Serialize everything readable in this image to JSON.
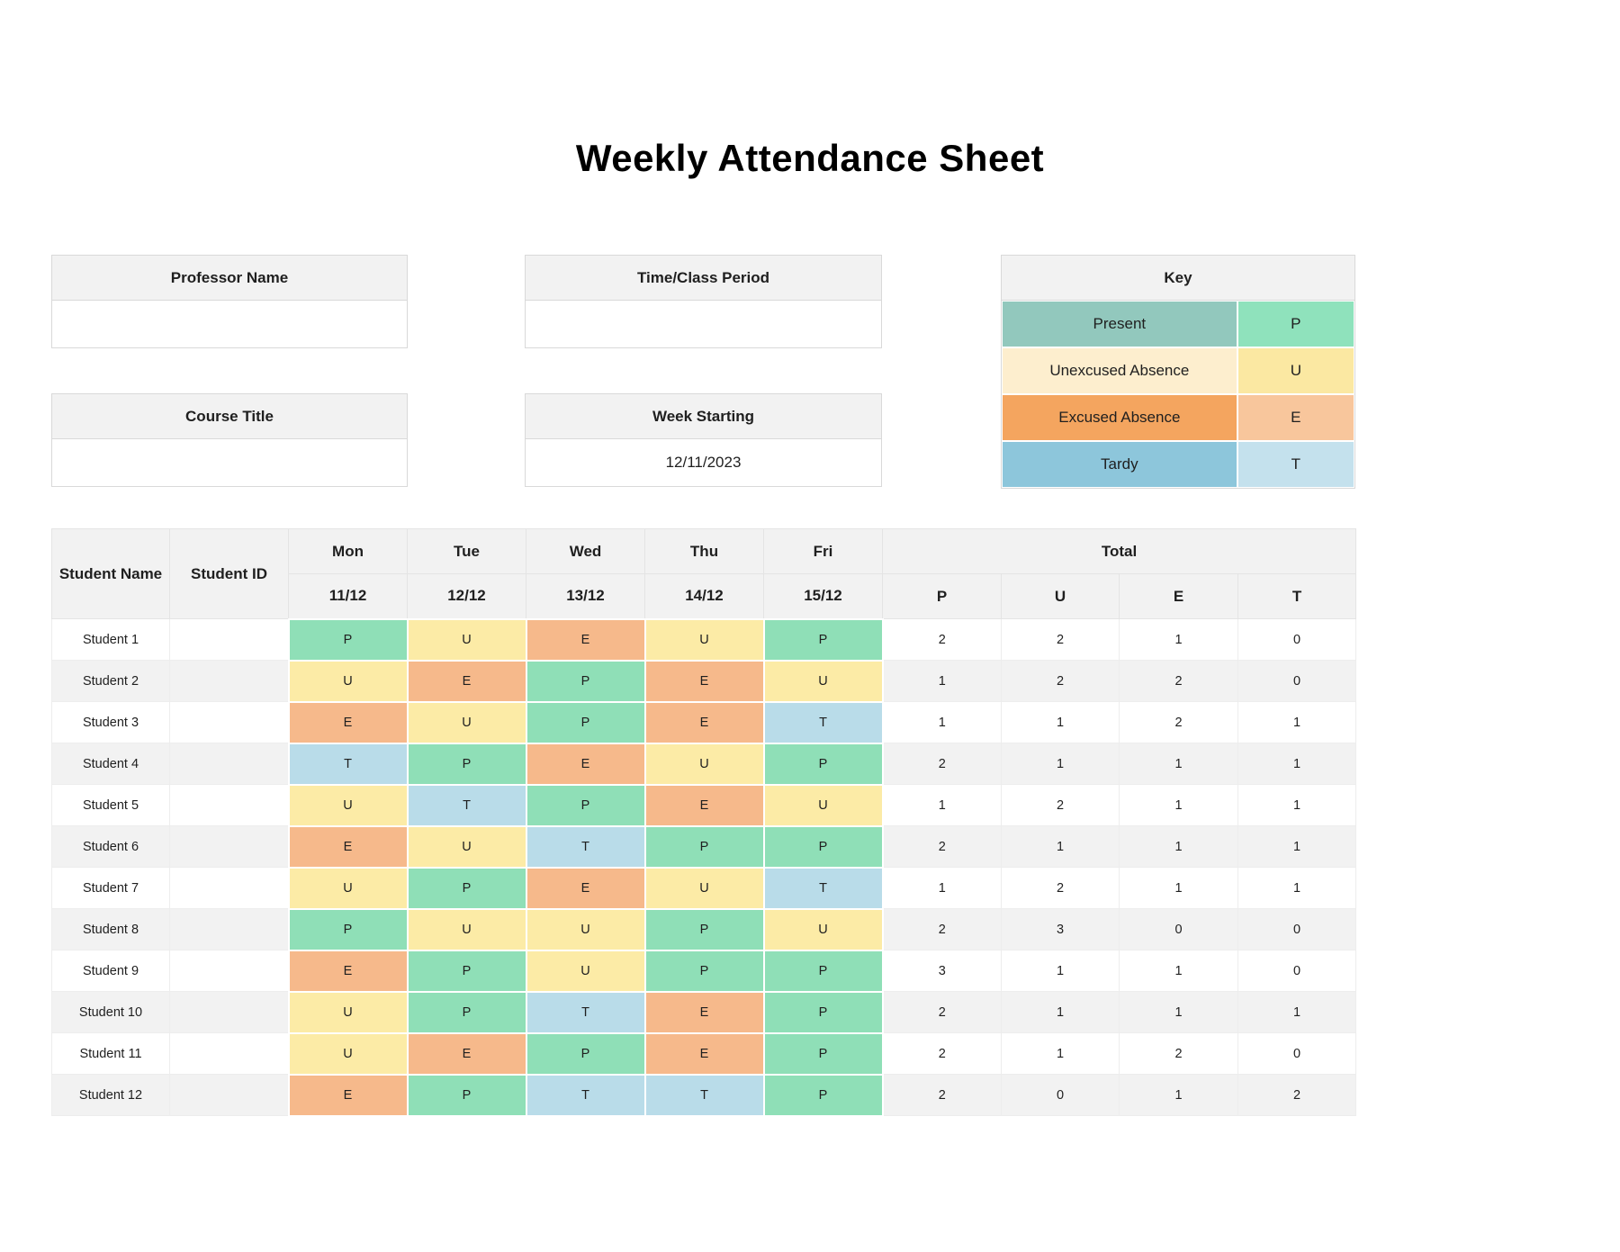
{
  "title": "Weekly Attendance Sheet",
  "form": {
    "professor": {
      "label": "Professor Name",
      "value": ""
    },
    "time_class": {
      "label": "Time/Class Period",
      "value": ""
    },
    "course": {
      "label": "Course Title",
      "value": ""
    },
    "week_starting": {
      "label": "Week Starting",
      "value": "12/11/2023"
    }
  },
  "key": {
    "title": "Key",
    "entries": [
      {
        "label": "Present",
        "code": "P",
        "label_color": "#92C8BD",
        "code_color": "#8FE2BC"
      },
      {
        "label": "Unexcused Absence",
        "code": "U",
        "label_color": "#FDEECE",
        "code_color": "#FBE8A2"
      },
      {
        "label": "Excused Absence",
        "code": "E",
        "label_color": "#F4A55F",
        "code_color": "#F8C69C"
      },
      {
        "label": "Tardy",
        "code": "T",
        "label_color": "#8DC6DB",
        "code_color": "#C4E1ED"
      }
    ]
  },
  "attendance": {
    "headers": {
      "student_name": "Student Name",
      "student_id": "Student ID"
    },
    "totals_label": "Total",
    "days": [
      {
        "day": "Mon",
        "date": "11/12"
      },
      {
        "day": "Tue",
        "date": "12/12"
      },
      {
        "day": "Wed",
        "date": "13/12"
      },
      {
        "day": "Thu",
        "date": "14/12"
      },
      {
        "day": "Fri",
        "date": "15/12"
      }
    ],
    "total_codes": [
      "P",
      "U",
      "E",
      "T"
    ],
    "code_colors": {
      "P": "#8FDFB7",
      "U": "#FCEBA6",
      "E": "#F6B98B",
      "T": "#B9DCE9"
    },
    "rows": [
      {
        "name": "Student 1",
        "id": "",
        "marks": [
          "P",
          "U",
          "E",
          "U",
          "P"
        ],
        "totals": [
          "2",
          "2",
          "1",
          "0"
        ]
      },
      {
        "name": "Student 2",
        "id": "",
        "marks": [
          "U",
          "E",
          "P",
          "E",
          "U"
        ],
        "totals": [
          "1",
          "2",
          "2",
          "0"
        ]
      },
      {
        "name": "Student 3",
        "id": "",
        "marks": [
          "E",
          "U",
          "P",
          "E",
          "T"
        ],
        "totals": [
          "1",
          "1",
          "2",
          "1"
        ]
      },
      {
        "name": "Student 4",
        "id": "",
        "marks": [
          "T",
          "P",
          "E",
          "U",
          "P"
        ],
        "totals": [
          "2",
          "1",
          "1",
          "1"
        ]
      },
      {
        "name": "Student 5",
        "id": "",
        "marks": [
          "U",
          "T",
          "P",
          "E",
          "U"
        ],
        "totals": [
          "1",
          "2",
          "1",
          "1"
        ]
      },
      {
        "name": "Student 6",
        "id": "",
        "marks": [
          "E",
          "U",
          "T",
          "P",
          "P"
        ],
        "totals": [
          "2",
          "1",
          "1",
          "1"
        ]
      },
      {
        "name": "Student 7",
        "id": "",
        "marks": [
          "U",
          "P",
          "E",
          "U",
          "T"
        ],
        "totals": [
          "1",
          "2",
          "1",
          "1"
        ]
      },
      {
        "name": "Student 8",
        "id": "",
        "marks": [
          "P",
          "U",
          "U",
          "P",
          "U"
        ],
        "totals": [
          "2",
          "3",
          "0",
          "0"
        ]
      },
      {
        "name": "Student 9",
        "id": "",
        "marks": [
          "E",
          "P",
          "U",
          "P",
          "P"
        ],
        "totals": [
          "3",
          "1",
          "1",
          "0"
        ]
      },
      {
        "name": "Student 10",
        "id": "",
        "marks": [
          "U",
          "P",
          "T",
          "E",
          "P"
        ],
        "totals": [
          "2",
          "1",
          "1",
          "1"
        ]
      },
      {
        "name": "Student 11",
        "id": "",
        "marks": [
          "U",
          "E",
          "P",
          "E",
          "P"
        ],
        "totals": [
          "2",
          "1",
          "2",
          "0"
        ]
      },
      {
        "name": "Student 12",
        "id": "",
        "marks": [
          "E",
          "P",
          "T",
          "T",
          "P"
        ],
        "totals": [
          "2",
          "0",
          "1",
          "2"
        ]
      }
    ]
  }
}
